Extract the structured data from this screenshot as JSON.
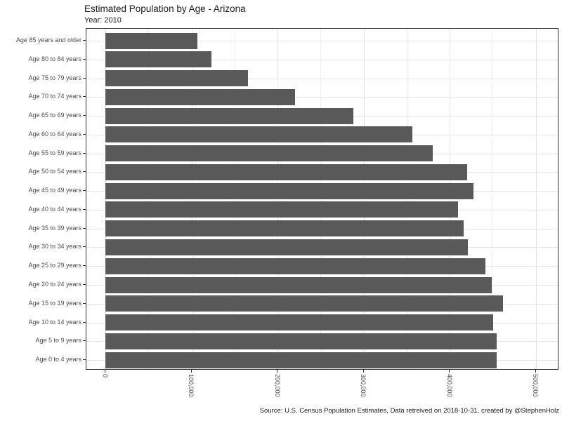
{
  "title": "Estimated Population by Age - Arizona",
  "subtitle": "Year: 2010",
  "caption": "Source: U.S. Census Population Estimates, Data retreived on 2018-10-31, created by @StephenHolz",
  "chart_data": {
    "type": "bar",
    "orientation": "horizontal",
    "title": "Estimated Population by Age - Arizona",
    "subtitle": "Year: 2010",
    "caption": "Source: U.S. Census Population Estimates, Data retreived on 2018-10-31, created by @StephenHolz",
    "xlabel": "",
    "ylabel": "",
    "categories": [
      "Age 85 years and older",
      "Age 80 to 84 years",
      "Age 75 to 79 years",
      "Age 70 to 74 years",
      "Age 65 to 69 years",
      "Age 60 to 64 years",
      "Age 55 to 59 years",
      "Age 50 to 54 years",
      "Age 45 to 49 years",
      "Age 40 to 44 years",
      "Age 35 to 39 years",
      "Age 30 to 34 years",
      "Age 25 to 29 years",
      "Age 20 to 24 years",
      "Age 15 to 19 years",
      "Age 10 to 14 years",
      "Age 5 to 9 years",
      "Age 0 to 4 years"
    ],
    "values": [
      107000,
      123000,
      166000,
      220000,
      288000,
      357000,
      380000,
      420000,
      428000,
      410000,
      416000,
      421000,
      442000,
      449000,
      462000,
      451000,
      455000,
      455000
    ],
    "x_ticks": [
      {
        "value": 0,
        "label": "0"
      },
      {
        "value": 100000,
        "label": "100,000"
      },
      {
        "value": 200000,
        "label": "200,000"
      },
      {
        "value": 300000,
        "label": "300,000"
      },
      {
        "value": 400000,
        "label": "400,000"
      },
      {
        "value": 500000,
        "label": "500,000"
      }
    ],
    "x_minor_ticks": [
      50000,
      150000,
      250000,
      350000,
      450000
    ],
    "xlim": [
      -22000,
      527000
    ],
    "grid": true,
    "legend_position": "none",
    "bar_color": "#595959",
    "grid_major_color": "#e4e4e4",
    "grid_minor_color": "#efefef",
    "panel_border_color": "#333333",
    "axis_text_color": "#4d4d4d"
  }
}
